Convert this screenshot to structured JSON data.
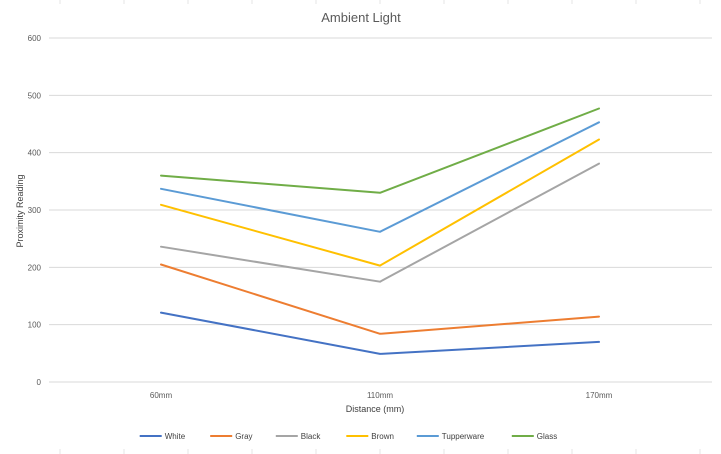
{
  "chart_data": {
    "type": "line",
    "title": "Ambient Light",
    "xlabel": "Distance (mm)",
    "ylabel": "Proximity Reading",
    "categories": [
      "60mm",
      "110mm",
      "170mm"
    ],
    "ylim": [
      0,
      600
    ],
    "yticks": [
      "0",
      "100",
      "200",
      "300",
      "400",
      "500",
      "600"
    ],
    "grid": true,
    "legend_position": "bottom",
    "series": [
      {
        "name": "White",
        "color": "#4472C4",
        "values": [
          121,
          49,
          70
        ]
      },
      {
        "name": "Gray",
        "color": "#ED7D31",
        "values": [
          205,
          84,
          114
        ]
      },
      {
        "name": "Black",
        "color": "#A5A5A5",
        "values": [
          236,
          175,
          381
        ]
      },
      {
        "name": "Brown",
        "color": "#FFC000",
        "values": [
          309,
          203,
          423
        ]
      },
      {
        "name": "Tupperware",
        "color": "#5B9BD5",
        "values": [
          337,
          262,
          453
        ]
      },
      {
        "name": "Glass",
        "color": "#70AD47",
        "values": [
          360,
          330,
          477
        ]
      }
    ]
  }
}
